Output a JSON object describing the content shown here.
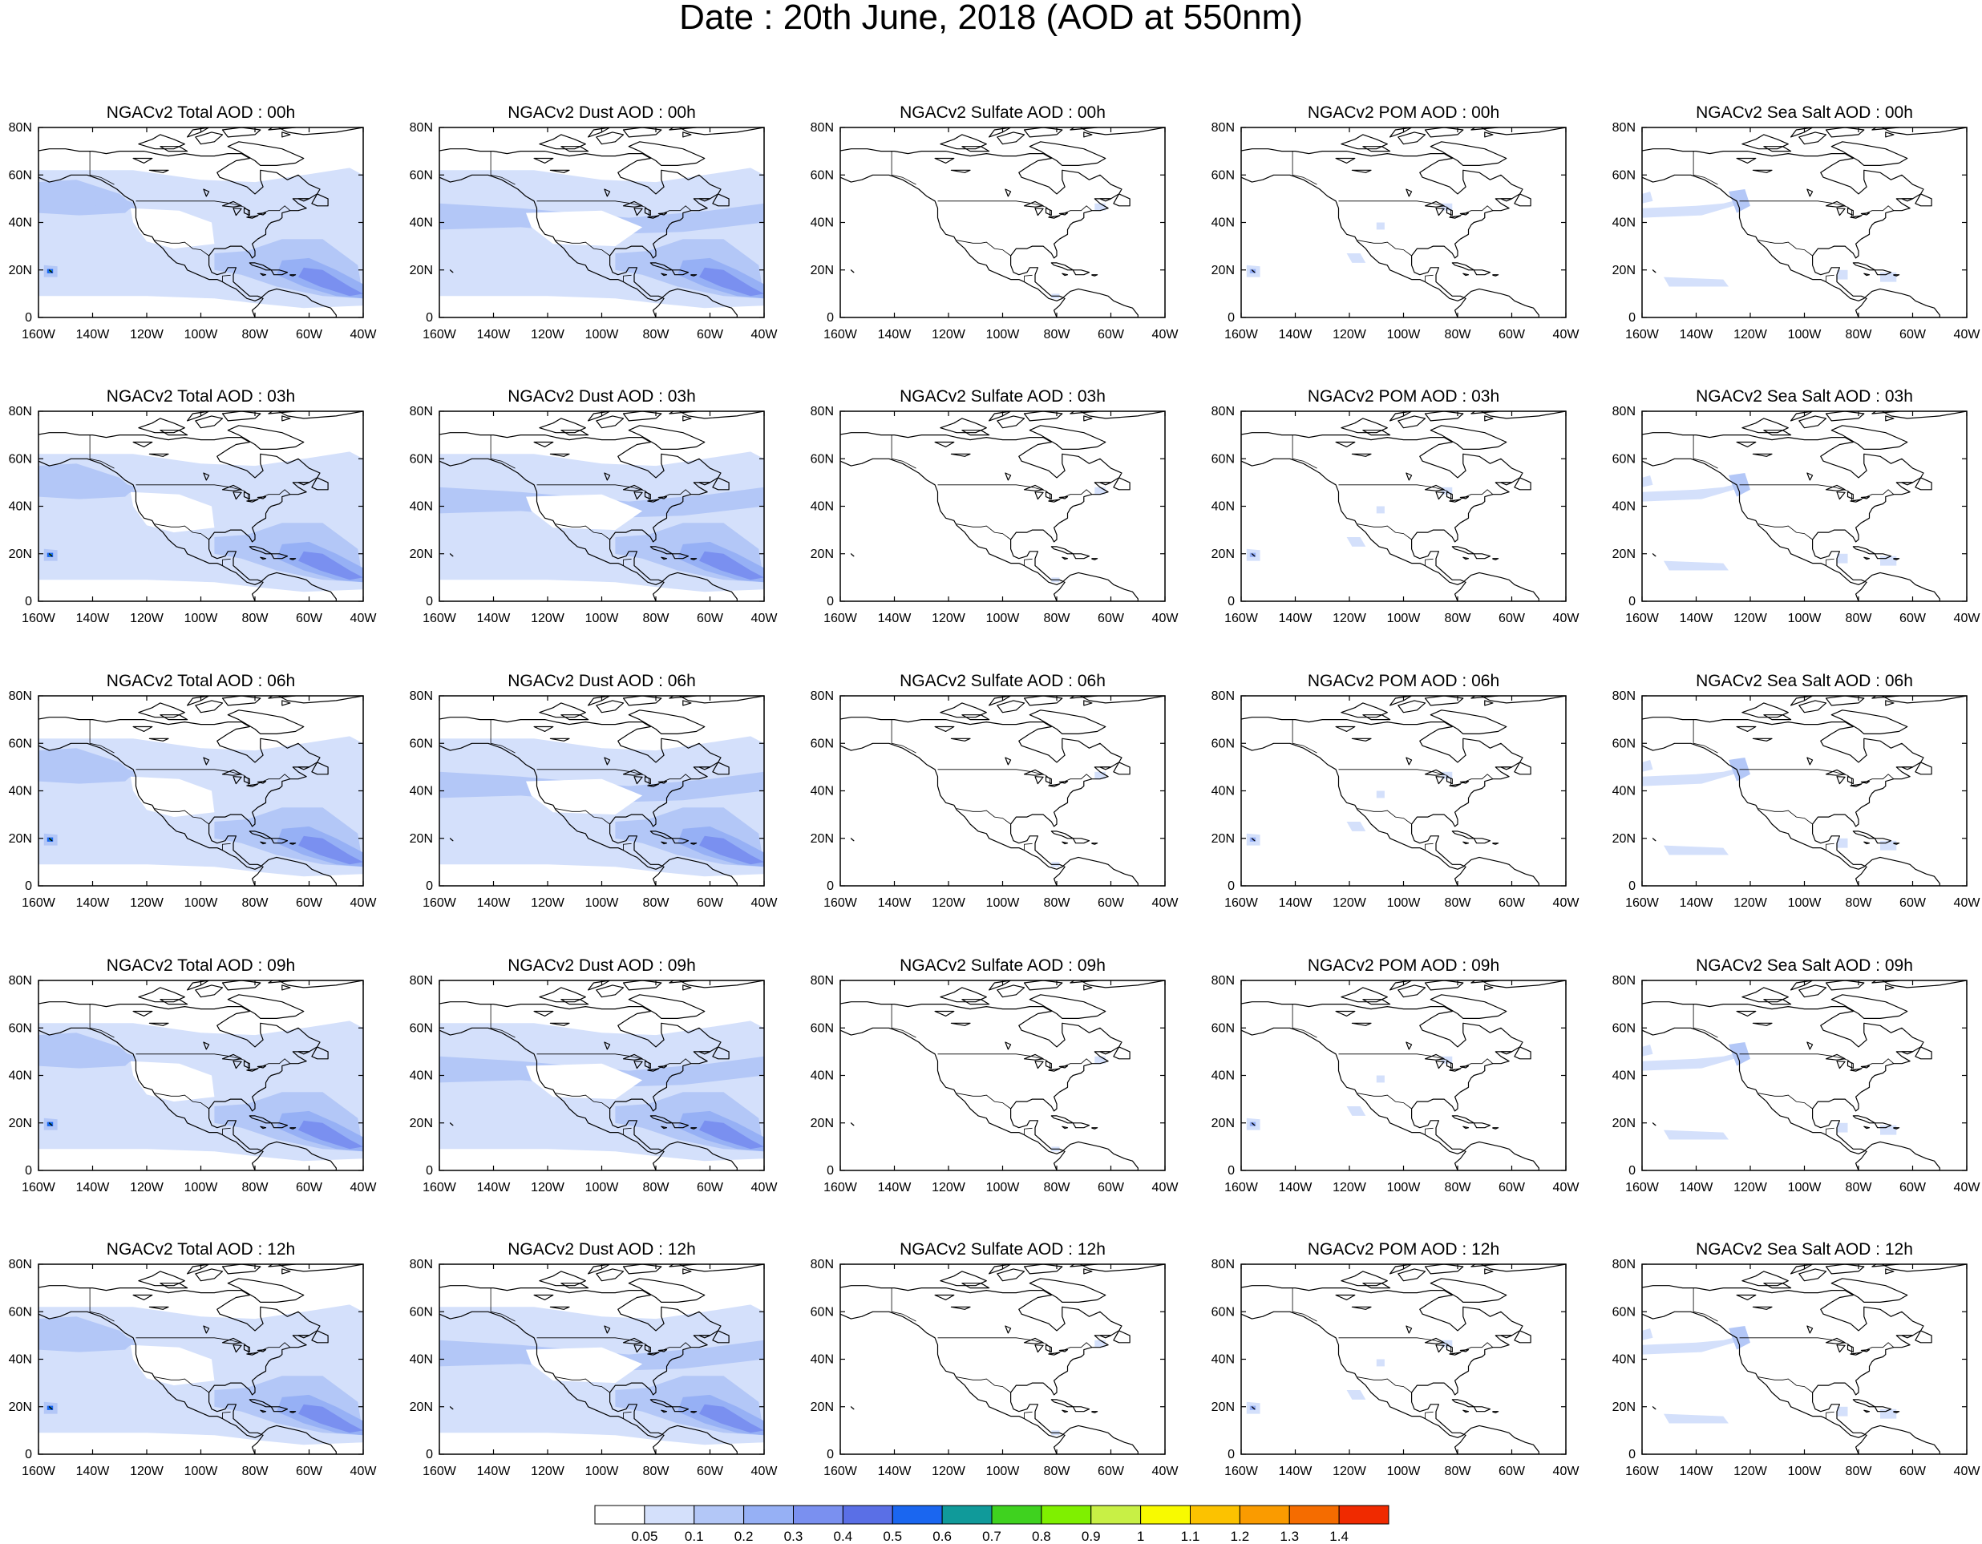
{
  "title": "Date : 20th June, 2018 (AOD at 550nm)",
  "axes": {
    "lat_ticks": [
      "80N",
      "60N",
      "40N",
      "20N",
      "0"
    ],
    "lon_ticks": [
      "160W",
      "140W",
      "120W",
      "100W",
      "80W",
      "60W",
      "40W"
    ],
    "lat_range": [
      0,
      80
    ],
    "lon_range": [
      -160,
      -40
    ]
  },
  "panel_titles": [
    [
      "NGACv2 Total AOD : 00h",
      "NGACv2 Dust AOD : 00h",
      "NGACv2 Sulfate AOD : 00h",
      "NGACv2 POM AOD : 00h",
      "NGACv2 Sea Salt AOD : 00h"
    ],
    [
      "NGACv2 Total AOD : 03h",
      "NGACv2 Dust AOD : 03h",
      "NGACv2 Sulfate AOD : 03h",
      "NGACv2 POM AOD : 03h",
      "NGACv2 Sea Salt AOD : 03h"
    ],
    [
      "NGACv2 Total AOD : 06h",
      "NGACv2 Dust AOD : 06h",
      "NGACv2 Sulfate AOD : 06h",
      "NGACv2 POM AOD : 06h",
      "NGACv2 Sea Salt AOD : 06h"
    ],
    [
      "NGACv2 Total AOD : 09h",
      "NGACv2 Dust AOD : 09h",
      "NGACv2 Sulfate AOD : 09h",
      "NGACv2 POM AOD : 09h",
      "NGACv2 Sea Salt  AOD : 09h"
    ],
    [
      "NGACv2 Total AOD  : 12h",
      "NGACv2 Dust AOD : 12h",
      "NGACv2 Sulfate AOD : 12h",
      "NGACv2 POM  AOD : 12h",
      "NGACv2 Sea Salt  AOD : 12h"
    ]
  ],
  "colorbar": {
    "labels": [
      "0.05",
      "0.1",
      "0.2",
      "0.3",
      "0.4",
      "0.5",
      "0.6",
      "0.7",
      "0.8",
      "0.9",
      "1",
      "1.1",
      "1.2",
      "1.3",
      "1.4"
    ],
    "colors": [
      "#ffffff",
      "#d4e0fb",
      "#b3c7f7",
      "#96b0f5",
      "#7a90f0",
      "#5a6fe6",
      "#1a66f0",
      "#109a9a",
      "#3fd21f",
      "#7ff000",
      "#c8f045",
      "#f8fa00",
      "#fcc200",
      "#fa9b00",
      "#f56c00",
      "#f02a00"
    ]
  },
  "map_colors": {
    "background": "#ffffff",
    "light": "#d4e0fb",
    "medium": "#b3c7f7",
    "dark": "#96b0f5",
    "darker": "#7a90f0",
    "darkest": "#5a6fe6",
    "hotspot_blue": "#1a66f0",
    "hotspot_teal": "#109a9a",
    "hotspot_green": "#3fd21f",
    "coastline": "#000000"
  }
}
